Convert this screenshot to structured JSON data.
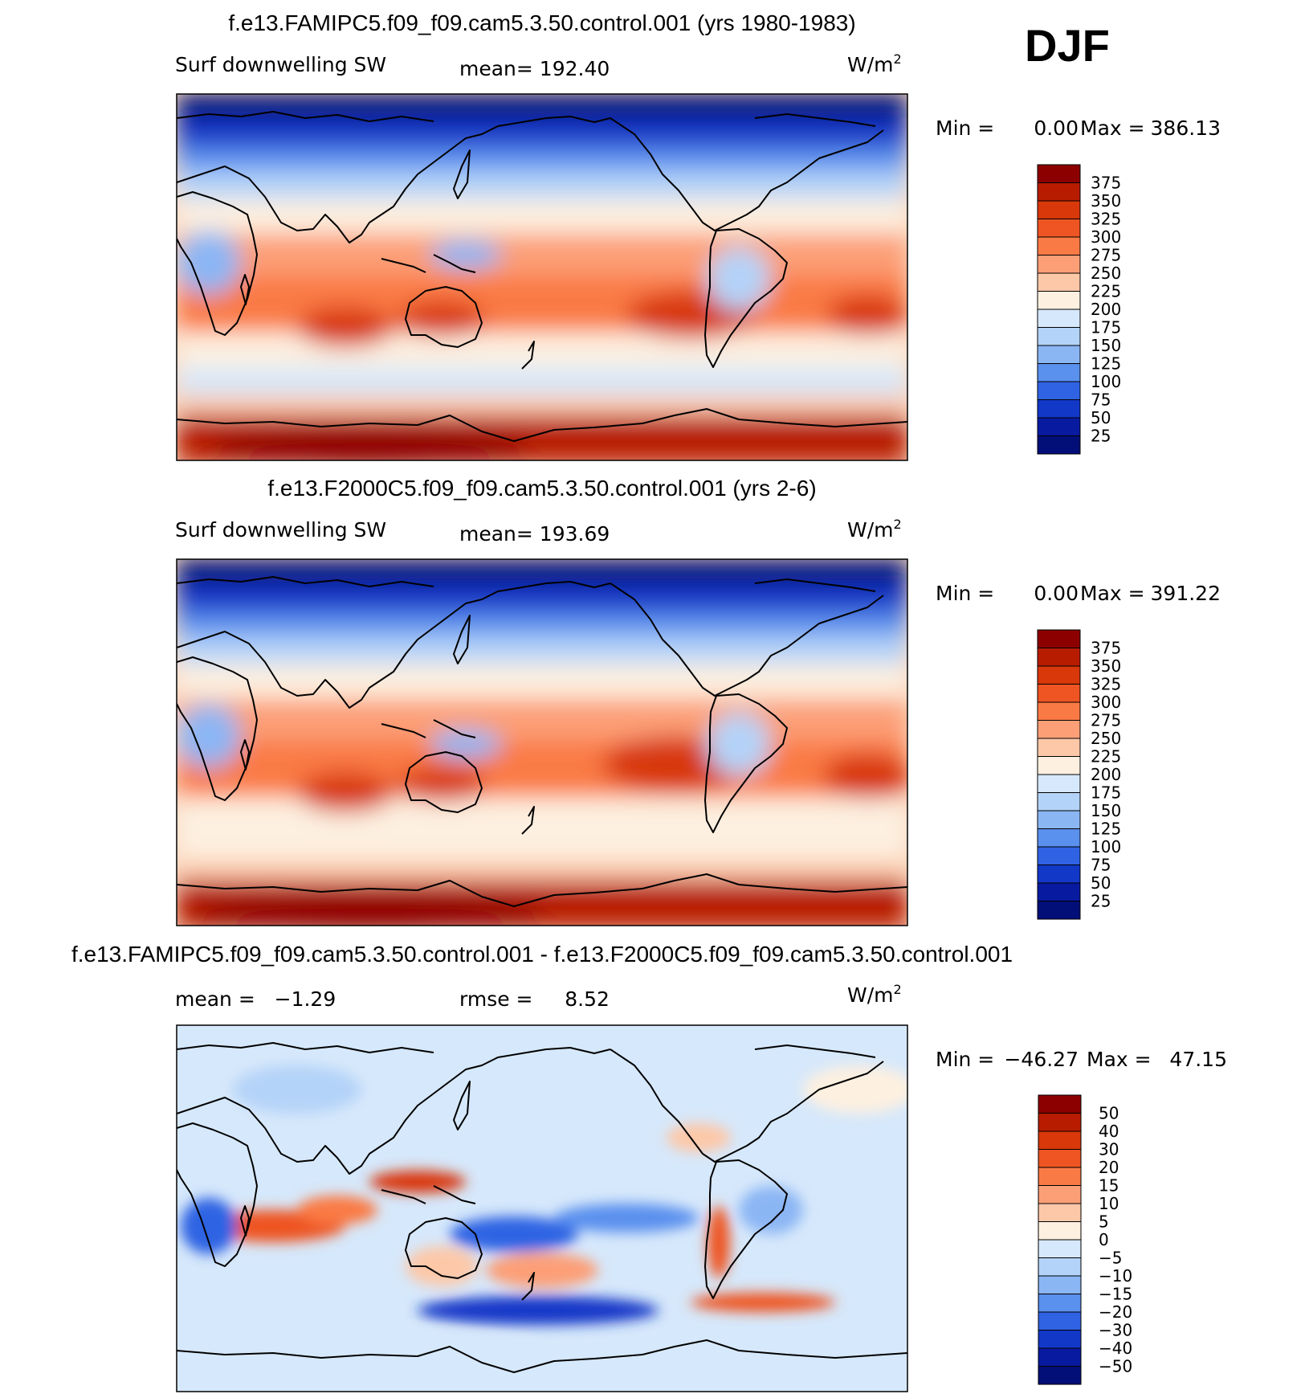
{
  "season": "DJF",
  "chart_data": [
    {
      "type": "heatmap",
      "title": "f.e13.FAMIPC5.f09_f09.cam5.3.50.control.001 (yrs 1980-1983)",
      "left_label": "Surf downwelling SW",
      "stat_label": "mean= 192.40",
      "units": "W/m",
      "units_sup": "2",
      "min_label": "Min =",
      "min_value": "0.00",
      "max_label": "Max =",
      "max_value": "386.13",
      "colorbar": {
        "levels": [
          "375",
          "350",
          "325",
          "300",
          "275",
          "250",
          "225",
          "200",
          "175",
          "150",
          "125",
          "100",
          "75",
          "50",
          "25"
        ],
        "colors": [
          "#8c0000",
          "#b81c00",
          "#d8380a",
          "#ee5522",
          "#fa7a45",
          "#fc9f77",
          "#fdc8a8",
          "#fdf0e0",
          "#d6e8fb",
          "#b4d3f8",
          "#8bb6f4",
          "#5a90ee",
          "#2f63e3",
          "#1238c8",
          "#081aa0",
          "#020f78"
        ]
      }
    },
    {
      "type": "heatmap",
      "title": "f.e13.F2000C5.f09_f09.cam5.3.50.control.001 (yrs 2-6)",
      "left_label": "Surf downwelling SW",
      "stat_label": "mean= 193.69",
      "units": "W/m",
      "units_sup": "2",
      "min_label": "Min =",
      "min_value": "0.00",
      "max_label": "Max =",
      "max_value": "391.22",
      "colorbar": {
        "levels": [
          "375",
          "350",
          "325",
          "300",
          "275",
          "250",
          "225",
          "200",
          "175",
          "150",
          "125",
          "100",
          "75",
          "50",
          "25"
        ],
        "colors": [
          "#8c0000",
          "#b81c00",
          "#d8380a",
          "#ee5522",
          "#fa7a45",
          "#fc9f77",
          "#fdc8a8",
          "#fdf0e0",
          "#d6e8fb",
          "#b4d3f8",
          "#8bb6f4",
          "#5a90ee",
          "#2f63e3",
          "#1238c8",
          "#081aa0",
          "#020f78"
        ]
      }
    },
    {
      "type": "heatmap",
      "title": "f.e13.FAMIPC5.f09_f09.cam5.3.50.control.001 - f.e13.F2000C5.f09_f09.cam5.3.50.control.001",
      "left_label": "mean =   −1.29",
      "stat_label": "rmse =     8.52",
      "units": "W/m",
      "units_sup": "2",
      "min_label": "Min =",
      "min_value": "−46.27",
      "max_label": "Max =",
      "max_value": "47.15",
      "colorbar": {
        "levels": [
          "50",
          "40",
          "30",
          "20",
          "15",
          "10",
          "5",
          "0",
          "−5",
          "−10",
          "−15",
          "−20",
          "−30",
          "−40",
          "−50"
        ],
        "colors": [
          "#8c0000",
          "#b81c00",
          "#d8380a",
          "#ee5522",
          "#fa7a45",
          "#fc9f77",
          "#fdc8a8",
          "#fdf0e0",
          "#d6e8fb",
          "#b4d3f8",
          "#8bb6f4",
          "#5a90ee",
          "#2f63e3",
          "#1238c8",
          "#081aa0",
          "#020f78"
        ]
      }
    }
  ]
}
